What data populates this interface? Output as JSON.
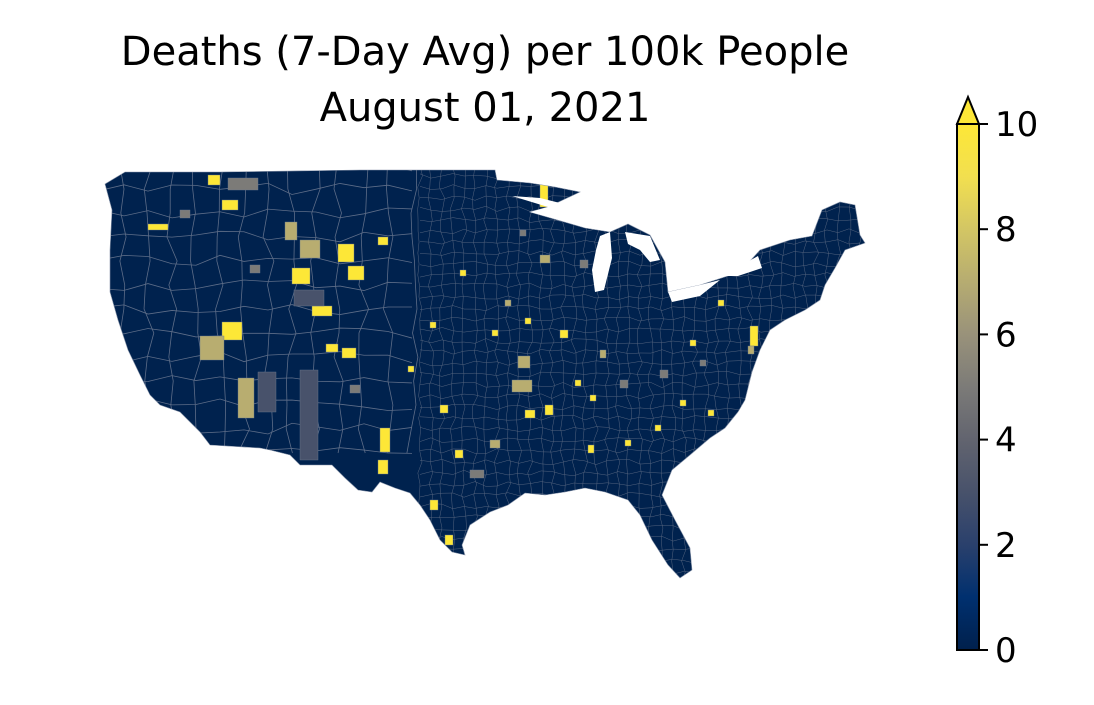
{
  "title": {
    "line1": "Deaths (7-Day Avg) per 100k People",
    "line2": "August 01, 2021"
  },
  "colorbar": {
    "min": 0,
    "max": 10,
    "extend": "max",
    "ticks": [
      "0",
      "2",
      "4",
      "6",
      "8",
      "10"
    ],
    "tick_values": [
      0,
      2,
      4,
      6,
      8,
      10
    ],
    "colormap": "cividis",
    "colors": [
      "#00204c",
      "#00306f",
      "#2a406c",
      "#48526b",
      "#62646f",
      "#7c7b78",
      "#99927a",
      "#b6ac71",
      "#d3c664",
      "#f2df4f",
      "#fde737"
    ]
  },
  "map": {
    "region": "contiguous-united-states",
    "unit": "county",
    "background_color": "#00224e",
    "border_color": "#6b7a92"
  }
}
